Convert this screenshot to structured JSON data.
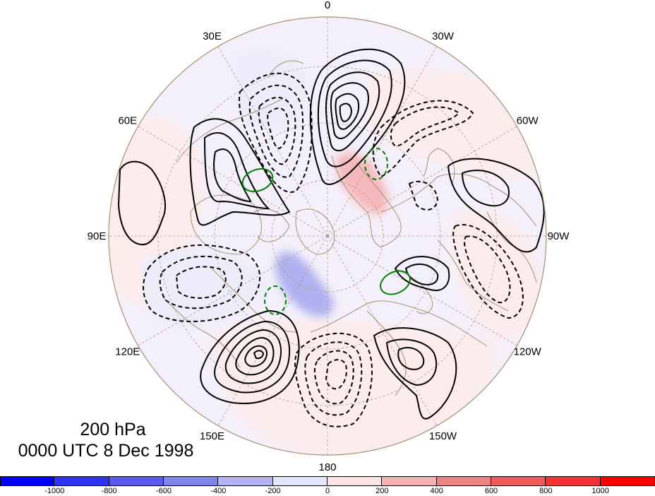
{
  "title": {
    "level": "200 hPa",
    "time": "0000 UTC 8 Dec 1998"
  },
  "longitude_labels": [
    {
      "text": "0",
      "lon": 0
    },
    {
      "text": "30W",
      "lon": -30
    },
    {
      "text": "60W",
      "lon": -60
    },
    {
      "text": "90W",
      "lon": -90
    },
    {
      "text": "120W",
      "lon": -120
    },
    {
      "text": "150W",
      "lon": -150
    },
    {
      "text": "180",
      "lon": 180
    },
    {
      "text": "150E",
      "lon": 150
    },
    {
      "text": "120E",
      "lon": 120
    },
    {
      "text": "90E",
      "lon": 90
    },
    {
      "text": "60E",
      "lon": 60
    },
    {
      "text": "30E",
      "lon": 30
    }
  ],
  "colorbar": {
    "labels": [
      "-1000",
      "-800",
      "-600",
      "-400",
      "-200",
      "0",
      "200",
      "400",
      "600",
      "800",
      "1000"
    ],
    "colors": [
      "#0000ff",
      "#3232f5",
      "#5a5aef",
      "#8484f0",
      "#b4b4f5",
      "#e6e6fa",
      "#fae6e6",
      "#f5b4b4",
      "#f08484",
      "#ef5a5a",
      "#f53232",
      "#ff0000"
    ]
  },
  "map_colors": {
    "land_outline": "#a89070",
    "grid": "#b09878",
    "positive_shade": "#fcecec",
    "negative_shade": "#ececfa",
    "pos_strong": "#f5b8bc",
    "neg_strong": "#b0b0f0",
    "contour": "#000000",
    "green_contour": "#008000"
  }
}
